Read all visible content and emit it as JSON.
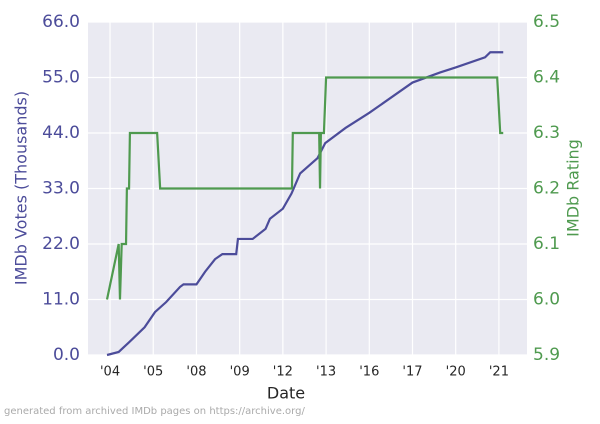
{
  "chart_data": {
    "type": "line",
    "xlabel": "Date",
    "ylabel": "IMDb Votes (Thousands)",
    "y2label": "IMDb Rating",
    "footnote": "generated from archived IMDb pages on https://archive.org/",
    "xlim": [
      -0.51,
      9.65
    ],
    "xticks": [
      {
        "value": 0,
        "label": "'04"
      },
      {
        "value": 1,
        "label": "'05"
      },
      {
        "value": 2,
        "label": "'08"
      },
      {
        "value": 3,
        "label": "'09"
      },
      {
        "value": 4,
        "label": "'12"
      },
      {
        "value": 5,
        "label": "'13"
      },
      {
        "value": 6,
        "label": "'16"
      },
      {
        "value": 7,
        "label": "'17"
      },
      {
        "value": 8,
        "label": "'20"
      },
      {
        "value": 9,
        "label": "'21"
      }
    ],
    "ylim": [
      0,
      66
    ],
    "yticks": [
      {
        "value": 0,
        "label": "0.0"
      },
      {
        "value": 11,
        "label": "11.0"
      },
      {
        "value": 22,
        "label": "22.0"
      },
      {
        "value": 33,
        "label": "33.0"
      },
      {
        "value": 44,
        "label": "44.0"
      },
      {
        "value": 55,
        "label": "55.0"
      },
      {
        "value": 66,
        "label": "66.0"
      }
    ],
    "y2lim": [
      5.9,
      6.5
    ],
    "y2ticks": [
      5.9,
      {
        "value": 6,
        "label": "6.0"
      },
      6.1,
      6.2,
      6.3,
      6.4,
      6.5
    ],
    "grid": true,
    "series": [
      {
        "name": "IMDb Votes",
        "color": "#4c4c9a",
        "x": [
          -0.07,
          0.2,
          0.5,
          0.8,
          1.04,
          1.3,
          1.62,
          1.7,
          2.0,
          2.2,
          2.43,
          2.6,
          2.92,
          2.96,
          3.3,
          3.6,
          3.7,
          4.0,
          4.2,
          4.4,
          4.8,
          4.98,
          5.45,
          6.0,
          6.5,
          7.0,
          7.64,
          8.0,
          8.68,
          8.8,
          9.1
        ],
        "values": [
          0,
          0.6,
          3,
          5.5,
          8.5,
          10.5,
          13.5,
          14,
          14,
          16.5,
          19,
          20,
          20,
          23,
          23,
          25,
          27,
          29,
          32,
          36,
          39,
          42,
          45,
          48,
          51,
          54,
          56,
          57,
          59,
          60,
          60
        ]
      },
      {
        "name": "IMDb Rating",
        "color": "#4f9a4f",
        "axis": "y2",
        "x": [
          -0.07,
          0.2,
          0.23,
          0.27,
          0.37,
          0.39,
          0.44,
          0.46,
          1.09,
          1.16,
          4.21,
          4.23,
          4.84,
          4.86,
          4.88,
          4.95,
          5.0,
          8.96,
          9.03,
          9.1
        ],
        "values": [
          6.0,
          6.1,
          6.0,
          6.1,
          6.1,
          6.2,
          6.2,
          6.3,
          6.3,
          6.2,
          6.2,
          6.3,
          6.3,
          6.2,
          6.3,
          6.3,
          6.4,
          6.4,
          6.3,
          6.3
        ]
      }
    ]
  }
}
